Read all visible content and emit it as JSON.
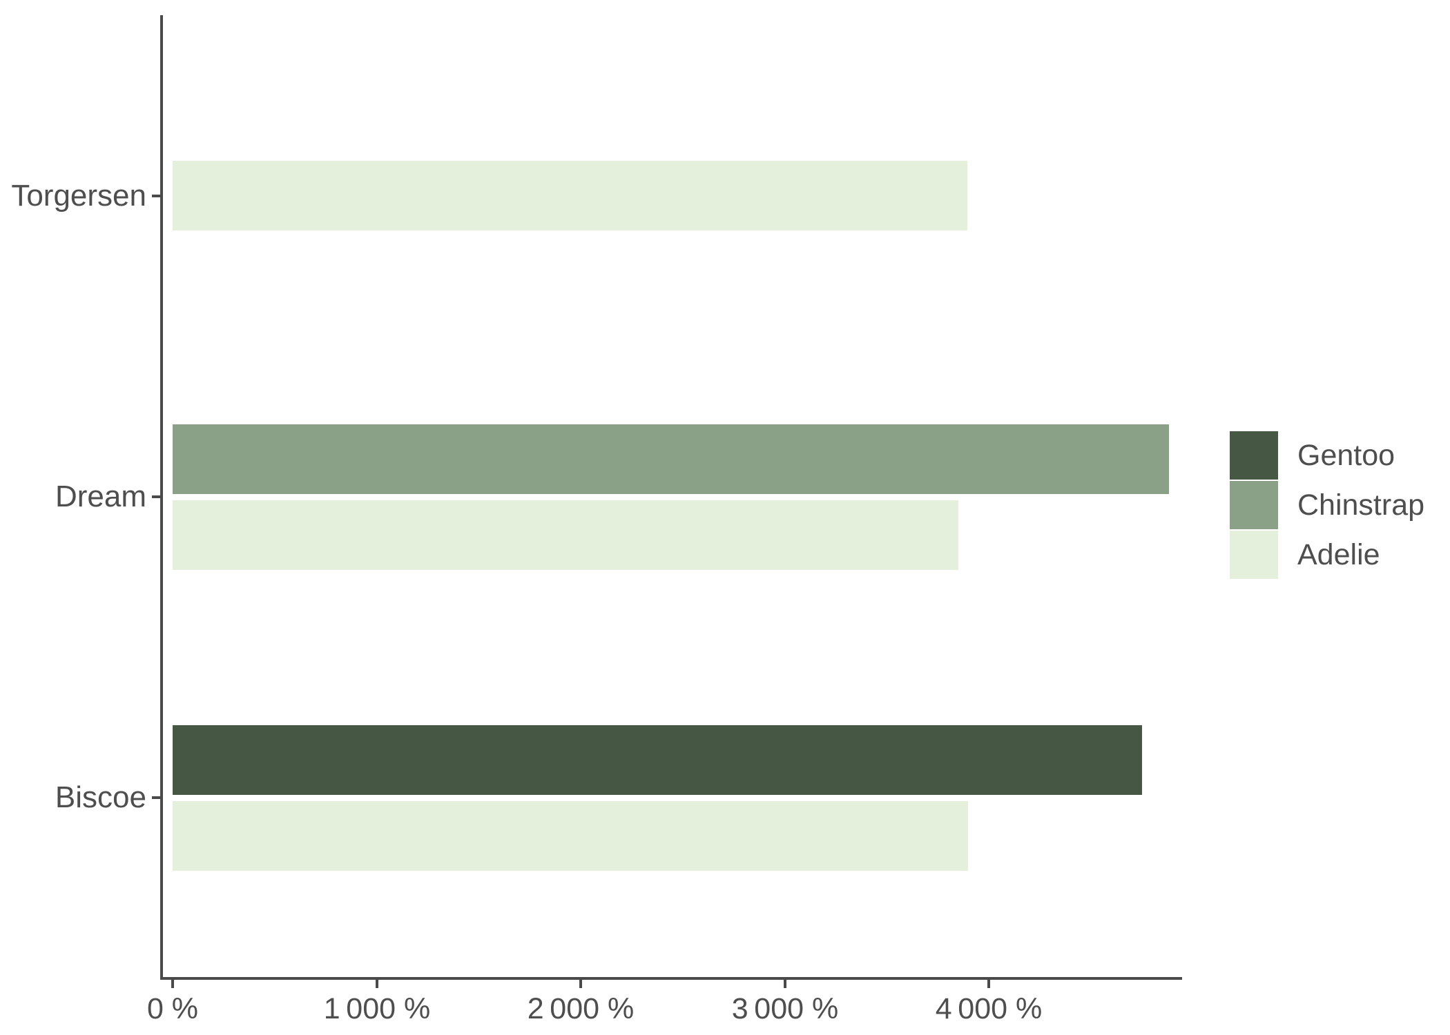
{
  "chart_data": {
    "type": "bar",
    "orientation": "horizontal",
    "title": "",
    "xlabel": "",
    "ylabel": "",
    "grid": false,
    "background": "#ffffff",
    "axis_color": "#4a4a4a",
    "text_color": "#4e4e4e",
    "categories": [
      "Torgersen",
      "Dream",
      "Biscoe"
    ],
    "series": [
      {
        "name": "Gentoo",
        "color": "#465844"
      },
      {
        "name": "Chinstrap",
        "color": "#8ba187"
      },
      {
        "name": "Adelie",
        "color": "#e4f0dc"
      }
    ],
    "groups": [
      {
        "category": "Torgersen",
        "bars": [
          {
            "series": "Adelie",
            "value": 3895
          }
        ]
      },
      {
        "category": "Dream",
        "bars": [
          {
            "series": "Chinstrap",
            "value": 4883
          },
          {
            "series": "Adelie",
            "value": 3850
          }
        ]
      },
      {
        "category": "Biscoe",
        "bars": [
          {
            "series": "Gentoo",
            "value": 4750
          },
          {
            "series": "Adelie",
            "value": 3898
          }
        ]
      }
    ],
    "x_axis": {
      "unit": "%",
      "range": [
        0,
        4950
      ],
      "ticks": [
        {
          "value": 0,
          "label": "0 %"
        },
        {
          "value": 1000,
          "label": "1 000 %"
        },
        {
          "value": 2000,
          "label": "2 000 %"
        },
        {
          "value": 3000,
          "label": "3 000 %"
        },
        {
          "value": 4000,
          "label": "4 000 %"
        }
      ]
    },
    "legend": {
      "position": "right",
      "items": [
        "Gentoo",
        "Chinstrap",
        "Adelie"
      ]
    }
  }
}
